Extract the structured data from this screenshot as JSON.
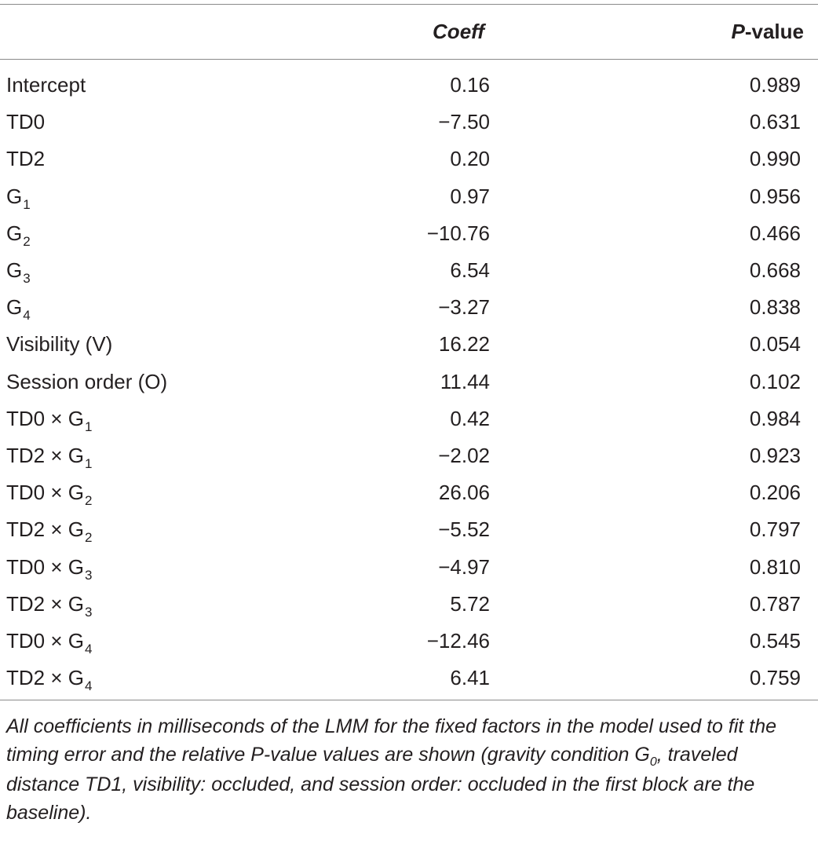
{
  "table": {
    "headers": {
      "label": "",
      "coeff": "Coeff",
      "pvalue_italic": "P",
      "pvalue_rest": "-value"
    },
    "rows": [
      {
        "label": "Intercept",
        "sub": "",
        "coeff": "0.16",
        "pvalue": "0.989"
      },
      {
        "label": "TD0",
        "sub": "",
        "coeff": "−7.50",
        "pvalue": "0.631"
      },
      {
        "label": "TD2",
        "sub": "",
        "coeff": "0.20",
        "pvalue": "0.990"
      },
      {
        "label": "G",
        "sub": "1",
        "coeff": "0.97",
        "pvalue": "0.956"
      },
      {
        "label": "G",
        "sub": "2",
        "coeff": "−10.76",
        "pvalue": "0.466"
      },
      {
        "label": "G",
        "sub": "3",
        "coeff": "6.54",
        "pvalue": "0.668"
      },
      {
        "label": "G",
        "sub": "4",
        "coeff": "−3.27",
        "pvalue": "0.838"
      },
      {
        "label": "Visibility (V)",
        "sub": "",
        "coeff": "16.22",
        "pvalue": "0.054"
      },
      {
        "label": "Session order (O)",
        "sub": "",
        "coeff": "11.44",
        "pvalue": "0.102"
      },
      {
        "label": "TD0 × G",
        "sub": "1",
        "coeff": "0.42",
        "pvalue": "0.984"
      },
      {
        "label": "TD2 × G",
        "sub": "1",
        "coeff": "−2.02",
        "pvalue": "0.923"
      },
      {
        "label": "TD0 × G",
        "sub": "2",
        "coeff": "26.06",
        "pvalue": "0.206"
      },
      {
        "label": "TD2 × G",
        "sub": "2",
        "coeff": "−5.52",
        "pvalue": "0.797"
      },
      {
        "label": "TD0 × G",
        "sub": "3",
        "coeff": "−4.97",
        "pvalue": "0.810"
      },
      {
        "label": "TD2 × G",
        "sub": "3",
        "coeff": "5.72",
        "pvalue": "0.787"
      },
      {
        "label": "TD0 × G",
        "sub": "4",
        "coeff": "−12.46",
        "pvalue": "0.545"
      },
      {
        "label": "TD2 × G",
        "sub": "4",
        "coeff": "6.41",
        "pvalue": "0.759"
      }
    ]
  },
  "footnote": {
    "part1": "All coefficients in milliseconds of the LMM for the fixed factors in the model used to fit the timing error and the relative P-value values are shown (gravity condition G",
    "sub0": "0",
    "part2": ", traveled distance TD1, visibility: occluded, and session order: occluded in the first block are the baseline)."
  },
  "colors": {
    "text": "#231f20",
    "rule": "#8a8a8a"
  }
}
